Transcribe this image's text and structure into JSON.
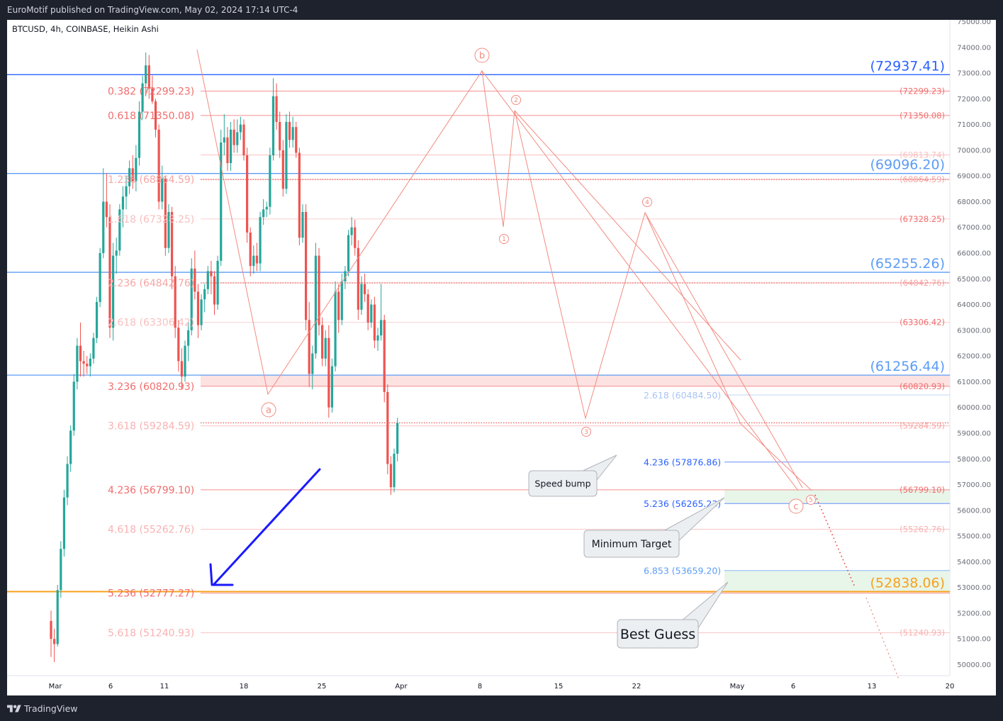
{
  "publisher_line": "EuroMotif published on TradingView.com, May 02, 2024 17:14 UTC-4",
  "footer_brand": "TradingView",
  "chart_data": {
    "type": "candlestick",
    "title": "BTCUSD, 4h, COINBASE, Heikin Ashi",
    "ylim": [
      49500,
      75300
    ],
    "y_ticks": [
      50000,
      51000,
      52000,
      53000,
      54000,
      55000,
      56000,
      57000,
      58000,
      59000,
      60000,
      61000,
      62000,
      63000,
      64000,
      65000,
      66000,
      67000,
      68000,
      69000,
      70000,
      71000,
      72000,
      73000,
      74000,
      75000
    ],
    "x_ticks": [
      "Mar",
      "6",
      "11",
      "18",
      "25",
      "Apr",
      "8",
      "15",
      "22",
      "May",
      "6",
      "13",
      "20"
    ],
    "grid": false,
    "colors": {
      "up": "#26a69a",
      "down": "#ef5350",
      "wave": "#f28b82",
      "blue": "#2962ff",
      "orange": "#f6a11c",
      "green_zone": "#e8f5e9"
    },
    "candles_ohlc": [
      [
        51700,
        52100,
        50300,
        51000
      ],
      [
        51000,
        51400,
        50100,
        50800
      ],
      [
        50800,
        53100,
        50700,
        52900
      ],
      [
        52900,
        54800,
        52600,
        54500
      ],
      [
        54500,
        56800,
        54200,
        56500
      ],
      [
        56500,
        58100,
        56200,
        57800
      ],
      [
        57800,
        59300,
        57500,
        59100
      ],
      [
        59100,
        61300,
        58900,
        61000
      ],
      [
        61000,
        62700,
        60700,
        62400
      ],
      [
        62400,
        63300,
        61200,
        61800
      ],
      [
        61800,
        62200,
        61200,
        61700
      ],
      [
        61700,
        62000,
        61300,
        61600
      ],
      [
        61600,
        62100,
        61200,
        61900
      ],
      [
        61900,
        62900,
        61700,
        62700
      ],
      [
        62700,
        64300,
        62500,
        64100
      ],
      [
        64100,
        66200,
        63900,
        66000
      ],
      [
        66000,
        69300,
        65800,
        68000
      ],
      [
        68000,
        69100,
        67000,
        67400
      ],
      [
        67400,
        67900,
        62700,
        63100
      ],
      [
        63100,
        66400,
        62600,
        65900
      ],
      [
        65900,
        66600,
        65200,
        66100
      ],
      [
        66100,
        67900,
        65900,
        67700
      ],
      [
        67700,
        68600,
        67000,
        68200
      ],
      [
        68200,
        69000,
        67700,
        68600
      ],
      [
        68600,
        69600,
        68300,
        69300
      ],
      [
        69300,
        69800,
        68500,
        68800
      ],
      [
        68800,
        70200,
        68400,
        69700
      ],
      [
        69700,
        71900,
        69400,
        71500
      ],
      [
        71500,
        72900,
        71200,
        72600
      ],
      [
        72600,
        73800,
        72100,
        73300
      ],
      [
        73300,
        73700,
        72000,
        72400
      ],
      [
        72400,
        72900,
        71800,
        71900
      ],
      [
        71900,
        72000,
        70500,
        70800
      ],
      [
        70800,
        71000,
        67700,
        68000
      ],
      [
        68000,
        69400,
        67700,
        68900
      ],
      [
        68900,
        69000,
        65900,
        66200
      ],
      [
        66200,
        67900,
        66000,
        67600
      ],
      [
        67600,
        67800,
        64600,
        65100
      ],
      [
        65100,
        65500,
        62700,
        63100
      ],
      [
        63100,
        63400,
        61400,
        61800
      ],
      [
        61800,
        62300,
        60700,
        61200
      ],
      [
        61200,
        62600,
        61000,
        62400
      ],
      [
        62400,
        63300,
        61800,
        63000
      ],
      [
        63000,
        65800,
        62800,
        65400
      ],
      [
        65400,
        66100,
        64200,
        64500
      ],
      [
        64500,
        64800,
        62700,
        63200
      ],
      [
        63200,
        64400,
        63000,
        64200
      ],
      [
        64200,
        64800,
        63700,
        64600
      ],
      [
        64600,
        65500,
        64400,
        65300
      ],
      [
        65300,
        65700,
        64400,
        65100
      ],
      [
        65100,
        65300,
        63600,
        64000
      ],
      [
        64000,
        65900,
        63800,
        65700
      ],
      [
        65700,
        70800,
        65500,
        70300
      ],
      [
        70300,
        71400,
        69800,
        70500
      ],
      [
        70500,
        70900,
        69200,
        69500
      ],
      [
        69500,
        71100,
        69200,
        70800
      ],
      [
        70800,
        71200,
        69900,
        70200
      ],
      [
        70200,
        71200,
        69900,
        70700
      ],
      [
        70700,
        71300,
        70400,
        71000
      ],
      [
        71000,
        71200,
        69600,
        69800
      ],
      [
        69800,
        70100,
        66400,
        66800
      ],
      [
        66800,
        67000,
        65100,
        65500
      ],
      [
        65500,
        66300,
        65200,
        65900
      ],
      [
        65900,
        66400,
        65300,
        65600
      ],
      [
        65600,
        67600,
        65300,
        67400
      ],
      [
        67400,
        68100,
        67100,
        67700
      ],
      [
        67700,
        68000,
        67400,
        67800
      ],
      [
        67800,
        70100,
        67500,
        69800
      ],
      [
        69800,
        72800,
        69600,
        72100
      ],
      [
        72100,
        72600,
        70800,
        71100
      ],
      [
        71100,
        71500,
        69700,
        70000
      ],
      [
        70000,
        70400,
        68200,
        68500
      ],
      [
        68500,
        71400,
        68300,
        71100
      ],
      [
        71100,
        71500,
        70100,
        70400
      ],
      [
        70400,
        71300,
        70100,
        70900
      ],
      [
        70900,
        71100,
        69700,
        69900
      ],
      [
        69900,
        70100,
        66300,
        66600
      ],
      [
        66600,
        67900,
        66400,
        67600
      ],
      [
        67600,
        67900,
        63000,
        63400
      ],
      [
        63400,
        64100,
        60800,
        61300
      ],
      [
        61300,
        62400,
        60700,
        62100
      ],
      [
        62100,
        66400,
        61900,
        65900
      ],
      [
        65900,
        66200,
        62800,
        63200
      ],
      [
        63200,
        63500,
        61600,
        61900
      ],
      [
        61900,
        63000,
        61600,
        62700
      ],
      [
        62700,
        63200,
        59600,
        60000
      ],
      [
        60000,
        61900,
        59800,
        61600
      ],
      [
        61600,
        64900,
        61400,
        64500
      ],
      [
        64500,
        64800,
        62900,
        63400
      ],
      [
        63400,
        65200,
        63200,
        64900
      ],
      [
        64900,
        65500,
        64600,
        65300
      ],
      [
        65300,
        66900,
        65100,
        66700
      ],
      [
        66700,
        67400,
        66300,
        67000
      ],
      [
        67000,
        67300,
        65900,
        66200
      ],
      [
        66200,
        66500,
        63400,
        63800
      ],
      [
        63800,
        65100,
        63600,
        64800
      ],
      [
        64800,
        65200,
        64100,
        64400
      ],
      [
        64400,
        64600,
        63000,
        63300
      ],
      [
        63300,
        64200,
        63100,
        64000
      ],
      [
        64000,
        64300,
        62300,
        62600
      ],
      [
        62600,
        63100,
        62200,
        62800
      ],
      [
        62800,
        64800,
        62600,
        63400
      ],
      [
        63400,
        63600,
        60200,
        60600
      ],
      [
        60600,
        60900,
        57400,
        57800
      ],
      [
        57800,
        58100,
        56600,
        56900
      ],
      [
        56900,
        58400,
        56700,
        58200
      ],
      [
        58200,
        59600,
        57900,
        59400
      ]
    ],
    "fib_left": [
      {
        "label": "0.382 (72299.23)",
        "price": 72299.23,
        "color": "#f26d6d"
      },
      {
        "label": "0.618 (71350.08)",
        "price": 71350.08,
        "color": "#f26d6d"
      },
      {
        "label": "1.236 (68864.59)",
        "price": 68864.59,
        "color": "#f7a6a6"
      },
      {
        "label": "1.618 (67328.25)",
        "price": 67328.25,
        "color": "#f9c0c0"
      },
      {
        "label": "2.236 (64842.76)",
        "price": 64842.76,
        "color": "#f7a6a6"
      },
      {
        "label": "2.618 (63306.42)",
        "price": 63306.42,
        "color": "#f9c0c0"
      },
      {
        "label": "3.236 (60820.93)",
        "price": 60820.93,
        "color": "#f26d6d"
      },
      {
        "label": "3.618 (59284.59)",
        "price": 59284.59,
        "color": "#f9b2b2"
      },
      {
        "label": "4.236 (56799.10)",
        "price": 56799.1,
        "color": "#f26d6d"
      },
      {
        "label": "4.618 (55262.76)",
        "price": 55262.76,
        "color": "#f9b2b2"
      },
      {
        "label": "5.236 (52777.27)",
        "price": 52777.27,
        "color": "#f26d6d"
      },
      {
        "label": "5.618 (51240.93)",
        "price": 51240.93,
        "color": "#f9b2b2"
      }
    ],
    "fib_right": [
      {
        "label": "(72299.23)",
        "price": 72299.23,
        "color": "#f26d6d"
      },
      {
        "label": "(71350.08)",
        "price": 71350.08,
        "color": "#f26d6d"
      },
      {
        "label": "(69813.74)",
        "price": 69813.74,
        "color": "#f9c0c0"
      },
      {
        "label": "(68864.59)",
        "price": 68864.59,
        "color": "#f7a6a6"
      },
      {
        "label": "(67328.25)",
        "price": 67328.25,
        "color": "#f26d6d"
      },
      {
        "label": "(64842.76)",
        "price": 64842.76,
        "color": "#f7a6a6"
      },
      {
        "label": "(63306.42)",
        "price": 63306.42,
        "color": "#f26d6d"
      },
      {
        "label": "(60820.93)",
        "price": 60820.93,
        "color": "#f26d6d"
      },
      {
        "label": "(59284.59)",
        "price": 59284.59,
        "color": "#f7a6a6"
      },
      {
        "label": "(56799.10)",
        "price": 56799.1,
        "color": "#f26d6d"
      },
      {
        "label": "(55262.76)",
        "price": 55262.76,
        "color": "#f9b2b2"
      },
      {
        "label": "(51240.93)",
        "price": 51240.93,
        "color": "#f9b2b2"
      }
    ],
    "key_levels": [
      {
        "label": "(72937.41)",
        "price": 72937.41,
        "color": "#2962ff"
      },
      {
        "label": "(69096.20)",
        "price": 69096.2,
        "color": "#5b9cf6"
      },
      {
        "label": "(65255.26)",
        "price": 65255.26,
        "color": "#5b9cf6"
      },
      {
        "label": "(61256.44)",
        "price": 61256.44,
        "color": "#5b9cf6"
      },
      {
        "label": "(52838.06)",
        "price": 52838.06,
        "color": "#f6a11c"
      }
    ],
    "extension_labels": [
      {
        "label": "2.618 (60484.50)",
        "price": 60484.5,
        "color": "#a9c4f5"
      },
      {
        "label": "4.236 (57876.86)",
        "price": 57876.86,
        "color": "#2962ff"
      },
      {
        "label": "5.236 (56265.23)",
        "price": 56265.23,
        "color": "#2962ff"
      },
      {
        "label": "6.853 (53659.20)",
        "price": 53659.2,
        "color": "#5b9cf6"
      }
    ],
    "wave_labels": [
      "b",
      "a",
      "c",
      "1",
      "2",
      "3",
      "4",
      "5"
    ],
    "callouts": [
      "Speed bump",
      "Minimum Target",
      "Best Guess"
    ]
  }
}
